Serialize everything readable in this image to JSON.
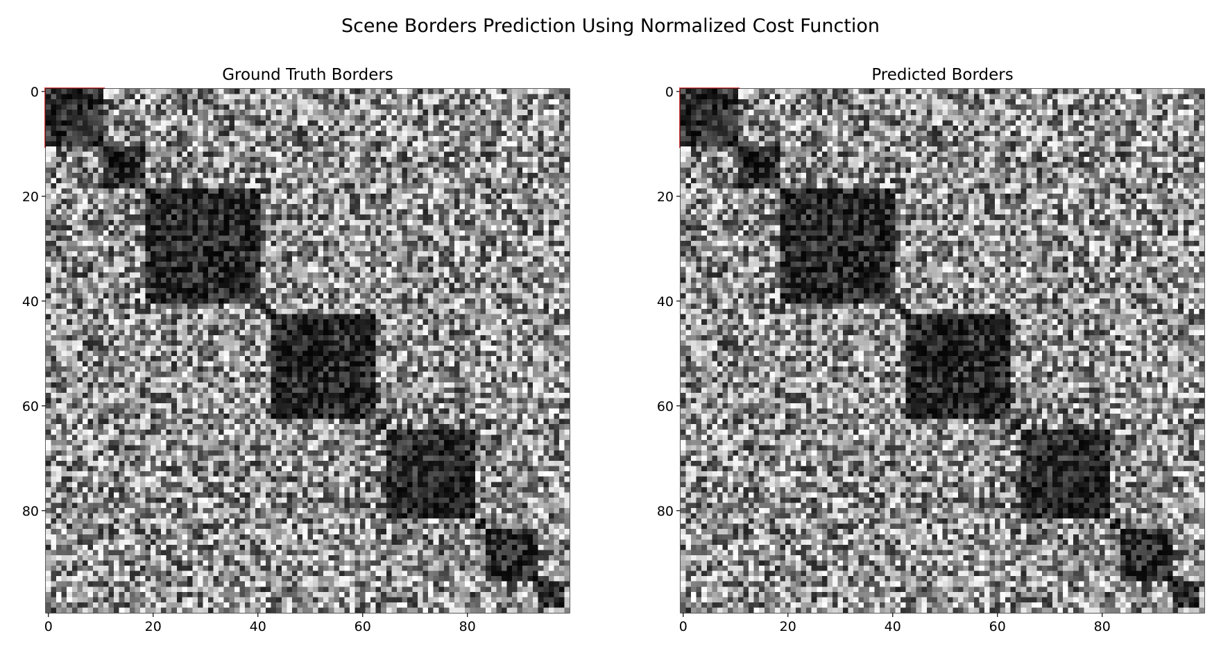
{
  "figure": {
    "suptitle": "Scene Borders Prediction Using Normalized Cost Function"
  },
  "chart_data": [
    {
      "type": "heatmap",
      "title": "Ground Truth Borders",
      "n": 100,
      "colormap": "gray",
      "xlim": [
        0,
        99
      ],
      "ylim": [
        99,
        0
      ],
      "xticks": [
        0,
        20,
        40,
        60,
        80
      ],
      "yticks": [
        0,
        20,
        40,
        60,
        80
      ],
      "xtick_labels": [
        "0",
        "20",
        "40",
        "60",
        "80"
      ],
      "ytick_labels": [
        "0",
        "20",
        "40",
        "60",
        "80"
      ],
      "border_color": "#cc2222",
      "scene_borders": [
        0,
        11,
        19,
        41,
        43,
        63,
        65,
        82,
        84,
        94,
        99
      ],
      "dark_blocks": [
        [
          0,
          11
        ],
        [
          11,
          19
        ],
        [
          19,
          41
        ],
        [
          41,
          43
        ],
        [
          43,
          63
        ],
        [
          63,
          65
        ],
        [
          65,
          82
        ],
        [
          82,
          84
        ],
        [
          84,
          94
        ],
        [
          94,
          99
        ]
      ]
    },
    {
      "type": "heatmap",
      "title": "Predicted Borders",
      "n": 100,
      "colormap": "gray",
      "xlim": [
        0,
        99
      ],
      "ylim": [
        99,
        0
      ],
      "xticks": [
        0,
        20,
        40,
        60,
        80
      ],
      "yticks": [
        0,
        20,
        40,
        60,
        80
      ],
      "xtick_labels": [
        "0",
        "20",
        "40",
        "60",
        "80"
      ],
      "ytick_labels": [
        "0",
        "20",
        "40",
        "60",
        "80"
      ],
      "border_color": "#cc2222",
      "scene_borders": [
        0,
        11,
        19,
        38,
        43,
        63,
        68,
        78,
        84,
        94,
        99
      ],
      "dark_blocks": [
        [
          0,
          11
        ],
        [
          11,
          19
        ],
        [
          19,
          41
        ],
        [
          41,
          43
        ],
        [
          43,
          63
        ],
        [
          63,
          65
        ],
        [
          65,
          82
        ],
        [
          82,
          84
        ],
        [
          84,
          94
        ],
        [
          94,
          99
        ]
      ]
    }
  ]
}
